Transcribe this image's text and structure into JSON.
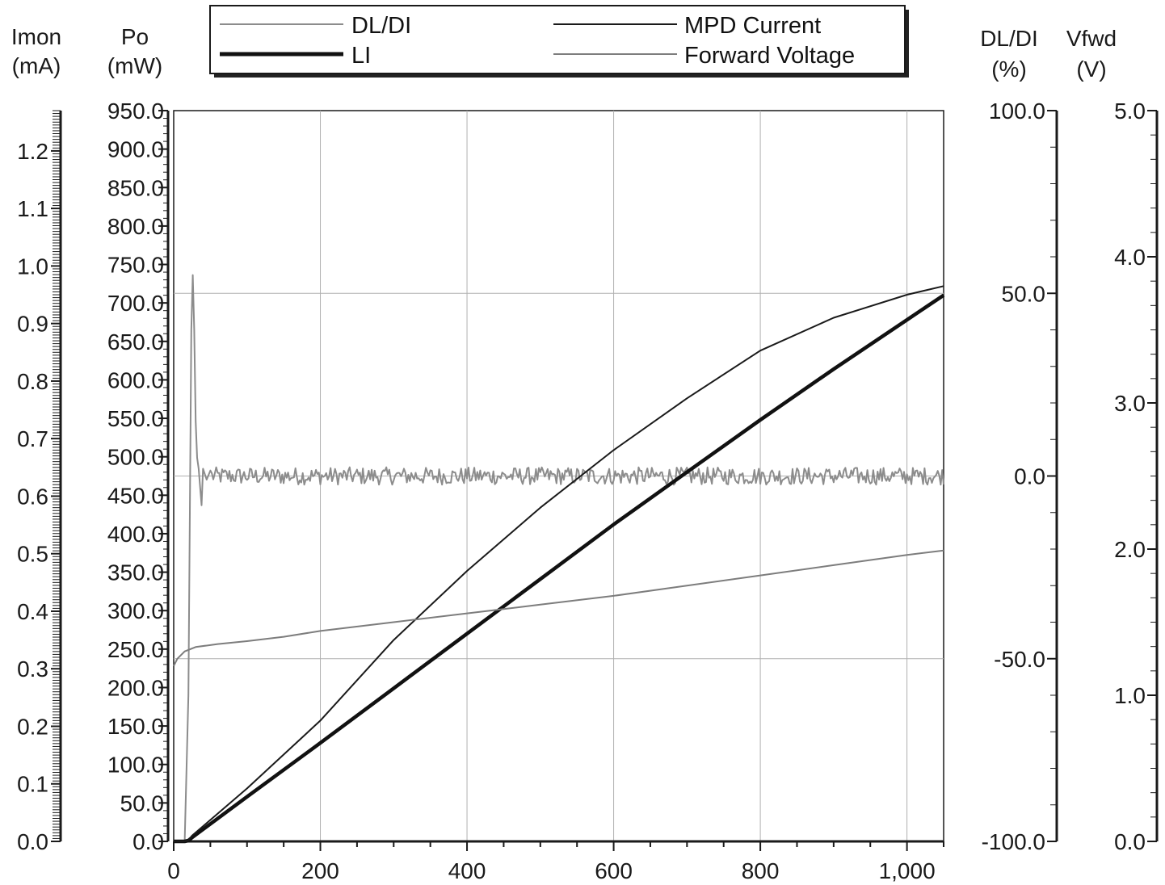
{
  "chart_data": {
    "type": "line",
    "x": {
      "label": "",
      "range": [
        0,
        1050
      ],
      "ticks": [
        0,
        200,
        400,
        600,
        800,
        1000
      ],
      "tick_labels": [
        "0",
        "200",
        "400",
        "600",
        "800",
        "1,000"
      ],
      "grid": true
    },
    "axes": {
      "imon": {
        "title_line1": "Imon",
        "title_line2": "(mA)",
        "range": [
          0,
          1.27
        ],
        "ticks": [
          0,
          0.1,
          0.2,
          0.3,
          0.4,
          0.5,
          0.6,
          0.7,
          0.8,
          0.9,
          1.0,
          1.1,
          1.2
        ],
        "tick_labels": [
          "0.0",
          "0.1",
          "0.2",
          "0.3",
          "0.4",
          "0.5",
          "0.6",
          "0.7",
          "0.8",
          "0.9",
          "1.0",
          "1.1",
          "1.2"
        ]
      },
      "po": {
        "title_line1": "Po",
        "title_line2": "(mW)",
        "range": [
          0,
          950
        ],
        "ticks": [
          0,
          50,
          100,
          150,
          200,
          250,
          300,
          350,
          400,
          450,
          500,
          550,
          600,
          650,
          700,
          750,
          800,
          850,
          900,
          950
        ],
        "tick_labels": [
          "0.0",
          "50.0",
          "100.0",
          "150.0",
          "200.0",
          "250.0",
          "300.0",
          "350.0",
          "400.0",
          "450.0",
          "500.0",
          "550.0",
          "600.0",
          "650.0",
          "700.0",
          "750.0",
          "800.0",
          "850.0",
          "900.0",
          "950.0"
        ]
      },
      "dldi": {
        "title_line1": "DL/DI",
        "title_line2": "(%)",
        "range": [
          -100,
          100
        ],
        "ticks": [
          -100,
          -50,
          0,
          50,
          100
        ],
        "tick_labels": [
          "-100.0",
          "-50.0",
          "0.0",
          "50.0",
          "100.0"
        ]
      },
      "vfwd": {
        "title_line1": "Vfwd",
        "title_line2": "(V)",
        "range": [
          0,
          5
        ],
        "ticks": [
          0,
          1,
          2,
          3,
          4,
          5
        ],
        "tick_labels": [
          "0.0",
          "1.0",
          "2.0",
          "3.0",
          "4.0",
          "5.0"
        ]
      }
    },
    "series": [
      {
        "name": "DL/DI",
        "axis": "dldi",
        "color": "#8c8c8c",
        "width": 2,
        "x": [
          0,
          15,
          20,
          22,
          24,
          26,
          28,
          30,
          32,
          34,
          36,
          38,
          40,
          45,
          50
        ],
        "y": [
          -100,
          -100,
          -60,
          -10,
          40,
          55,
          40,
          15,
          5,
          2,
          -3,
          -8,
          2,
          -1,
          1.5
        ],
        "noise_from": 50,
        "noise_to": 1050,
        "noise_level": 0,
        "noise_amplitude": 2.4
      },
      {
        "name": "LI",
        "axis": "po",
        "color": "#111111",
        "width": 4.5,
        "x": [
          0,
          15,
          20,
          25,
          100,
          200,
          300,
          400,
          500,
          600,
          700,
          800,
          900,
          1000,
          1050
        ],
        "y": [
          0,
          0,
          1,
          5,
          58,
          128,
          199,
          270,
          341,
          412,
          480,
          548,
          614,
          678,
          710
        ]
      },
      {
        "name": "MPD Current",
        "axis": "imon",
        "color": "#1a1a1a",
        "width": 2,
        "x": [
          0,
          15,
          20,
          25,
          100,
          200,
          300,
          400,
          500,
          600,
          700,
          800,
          900,
          1000,
          1050
        ],
        "y": [
          0,
          0,
          0.002,
          0.01,
          0.092,
          0.21,
          0.35,
          0.47,
          0.58,
          0.68,
          0.77,
          0.853,
          0.91,
          0.95,
          0.965
        ]
      },
      {
        "name": "Forward Voltage",
        "axis": "vfwd",
        "color": "#7d7d7d",
        "width": 2,
        "x": [
          0,
          5,
          15,
          30,
          60,
          100,
          150,
          200,
          300,
          400,
          500,
          600,
          700,
          800,
          900,
          1000,
          1050
        ],
        "y": [
          1.2,
          1.25,
          1.3,
          1.33,
          1.35,
          1.37,
          1.4,
          1.44,
          1.5,
          1.56,
          1.62,
          1.68,
          1.75,
          1.82,
          1.89,
          1.96,
          1.99
        ]
      }
    ],
    "legend": {
      "placement": "top",
      "entries": [
        {
          "label": "DL/DI",
          "color": "#8c8c8c",
          "width": 2
        },
        {
          "label": "LI",
          "color": "#111111",
          "width": 5
        },
        {
          "label": "MPD Current",
          "color": "#1a1a1a",
          "width": 2
        },
        {
          "label": "Forward Voltage",
          "color": "#7d7d7d",
          "width": 2
        }
      ]
    },
    "grid": true
  }
}
